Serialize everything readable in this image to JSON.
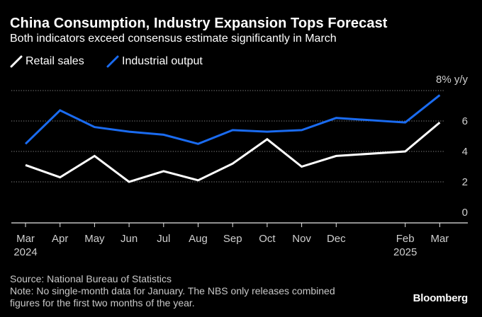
{
  "chart_data": {
    "type": "line",
    "title": "China Consumption, Industry Expansion Tops Forecast",
    "subtitle": "Both indicators exceed consensus estimate significantly in March",
    "unit_label": "8% y/y",
    "categories": [
      "Mar 2024",
      "Apr",
      "May",
      "Jun",
      "Jul",
      "Aug",
      "Sep",
      "Oct",
      "Nov",
      "Dec",
      "Feb 2025",
      "Mar"
    ],
    "x_ticks": [
      {
        "month": "Mar",
        "year": "2024"
      },
      {
        "month": "Apr",
        "year": ""
      },
      {
        "month": "May",
        "year": ""
      },
      {
        "month": "Jun",
        "year": ""
      },
      {
        "month": "Jul",
        "year": ""
      },
      {
        "month": "Aug",
        "year": ""
      },
      {
        "month": "Sep",
        "year": ""
      },
      {
        "month": "Oct",
        "year": ""
      },
      {
        "month": "Nov",
        "year": ""
      },
      {
        "month": "Dec",
        "year": ""
      },
      {
        "month": "Feb",
        "year": "2025"
      },
      {
        "month": "Mar",
        "year": ""
      }
    ],
    "x_slot": [
      0,
      1,
      2,
      3,
      4,
      5,
      6,
      7,
      8,
      9,
      11,
      12
    ],
    "series": [
      {
        "name": "Retail sales",
        "color": "#ffffff",
        "values": [
          3.1,
          2.3,
          3.7,
          2.0,
          2.7,
          2.1,
          3.2,
          4.8,
          3.0,
          3.7,
          4.0,
          5.9
        ]
      },
      {
        "name": "Industrial output",
        "color": "#1a6bf0",
        "values": [
          4.5,
          6.7,
          5.6,
          5.3,
          5.1,
          4.5,
          5.4,
          5.3,
          5.4,
          6.2,
          5.9,
          7.7
        ]
      }
    ],
    "ylim": [
      0,
      8
    ],
    "yticks": [
      0,
      2,
      4,
      6,
      8
    ],
    "ytick_labels": [
      "0",
      "2",
      "4",
      "6",
      "8% y/y"
    ],
    "grid": true
  },
  "footer": {
    "source": "Source: National Bureau of Statistics",
    "note_line1": "Note: No single-month data for January. The NBS only releases combined",
    "note_line2": "figures for the first two months of the year."
  },
  "brand": "Bloomberg"
}
